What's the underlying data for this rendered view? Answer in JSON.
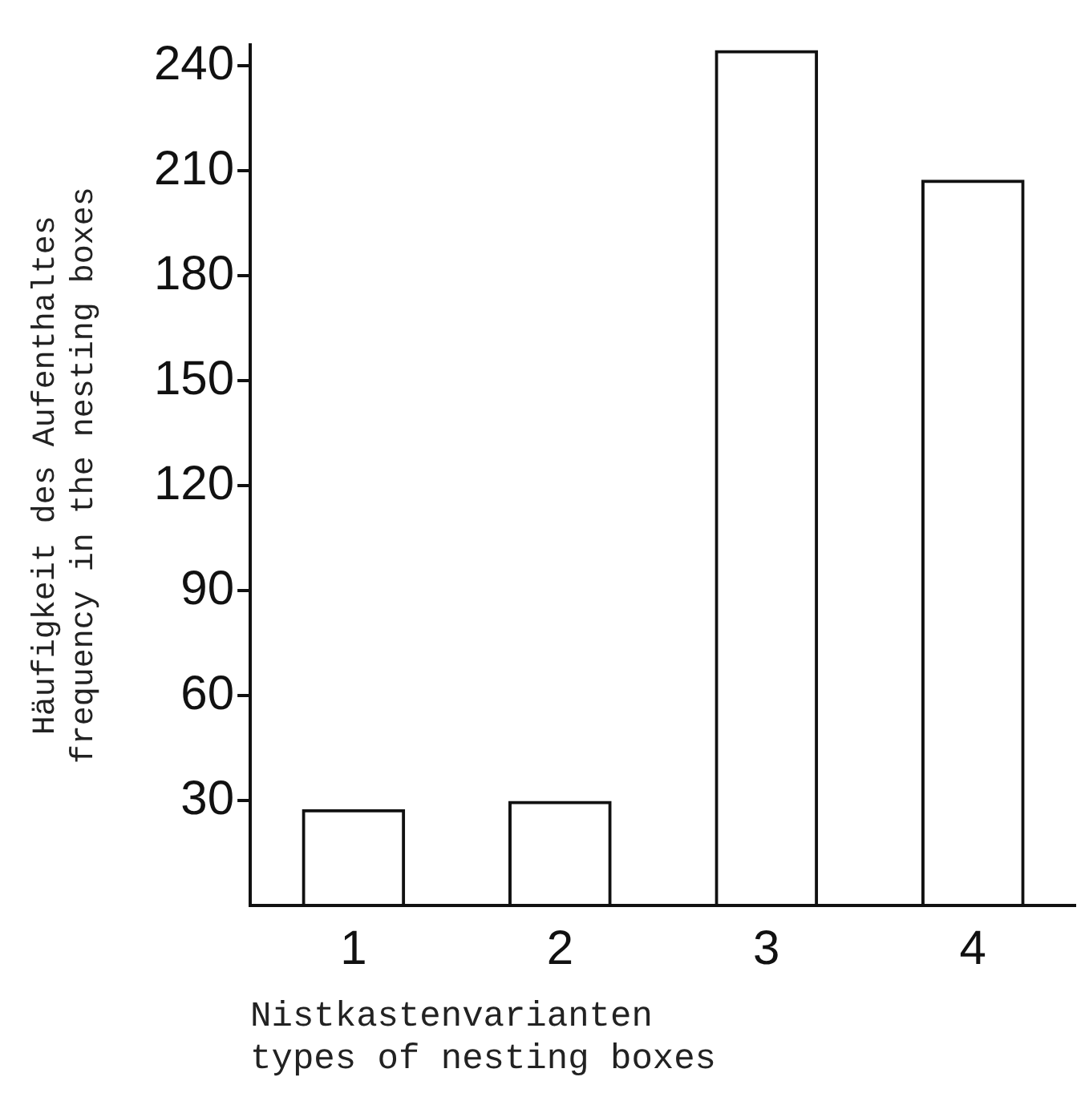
{
  "chart_data": {
    "type": "bar",
    "xlabel": "Nistkastenvarianten\ntypes of nesting boxes",
    "ylabel": "Häufigkeit des Aufenthaltes\nfrequency in the nesting boxes",
    "categories": [
      "1",
      "2",
      "3",
      "4"
    ],
    "values": [
      27.6,
      30,
      244.5,
      207.5
    ],
    "color": "#111111",
    "ylim": [
      0,
      246
    ],
    "yticks": [
      30,
      60,
      90,
      120,
      150,
      180,
      210,
      240
    ],
    "grid": false,
    "legend": false
  }
}
